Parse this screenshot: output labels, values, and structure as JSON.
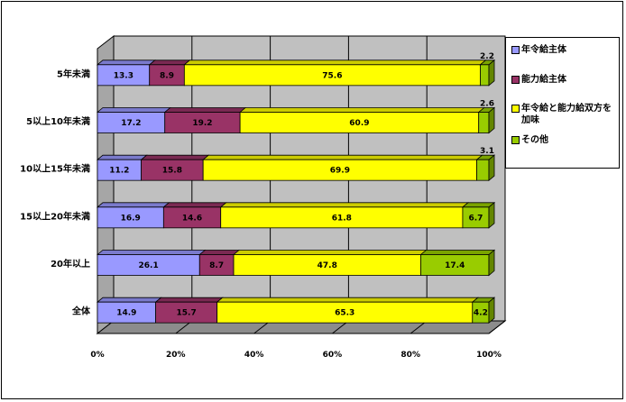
{
  "chart_data": {
    "type": "bar",
    "orientation": "horizontal",
    "stacked": "percent",
    "categories": [
      "5年未満",
      "5以上10年未満",
      "10以上15年未満",
      "15以上20年未満",
      "20年以上",
      "全体"
    ],
    "series": [
      {
        "name": "年令給主体",
        "color": "#9999ff",
        "values": [
          13.3,
          17.2,
          11.2,
          16.9,
          26.1,
          14.9
        ]
      },
      {
        "name": "能力給主体",
        "color": "#993366",
        "values": [
          8.9,
          19.2,
          15.8,
          14.6,
          8.7,
          15.7
        ]
      },
      {
        "name": "年令給と能力給双方を加味",
        "color": "#ffff00",
        "values": [
          75.6,
          60.9,
          69.9,
          61.8,
          47.8,
          65.3
        ]
      },
      {
        "name": "その他",
        "color": "#99cc00",
        "values": [
          2.2,
          2.6,
          3.1,
          6.7,
          17.4,
          4.2
        ]
      }
    ],
    "xticks": [
      "0%",
      "20%",
      "40%",
      "60%",
      "80%",
      "100%"
    ],
    "xlim": [
      0,
      100
    ],
    "grid": true,
    "legend_position": "right"
  }
}
